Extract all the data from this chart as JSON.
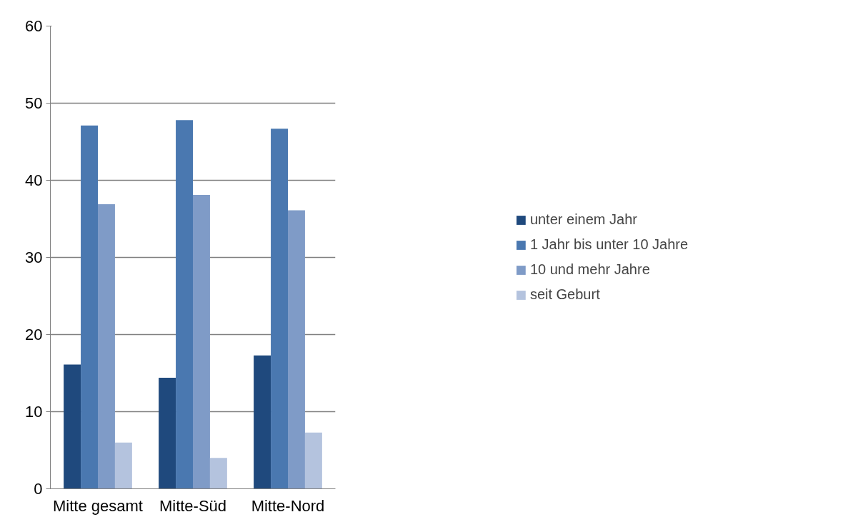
{
  "chart_data": {
    "type": "bar",
    "categories": [
      "Mitte gesamt",
      "Mitte-Süd",
      "Mitte-Nord"
    ],
    "series": [
      {
        "name": "unter einem Jahr",
        "color": "#1f497d",
        "values": [
          16.1,
          14.4,
          17.3
        ]
      },
      {
        "name": "1 Jahr bis unter 10 Jahre",
        "color": "#4a78b0",
        "values": [
          47.1,
          47.8,
          46.7
        ]
      },
      {
        "name": "10 und mehr Jahre",
        "color": "#7f9bc7",
        "values": [
          36.9,
          38.1,
          36.1
        ]
      },
      {
        "name": "seit Geburt",
        "color": "#b4c3de",
        "values": [
          6.0,
          4.0,
          7.3
        ]
      }
    ],
    "ylim": [
      0,
      60
    ],
    "yticks": [
      0,
      10,
      20,
      30,
      40,
      50,
      60
    ],
    "grid": "y",
    "legend": "right"
  }
}
